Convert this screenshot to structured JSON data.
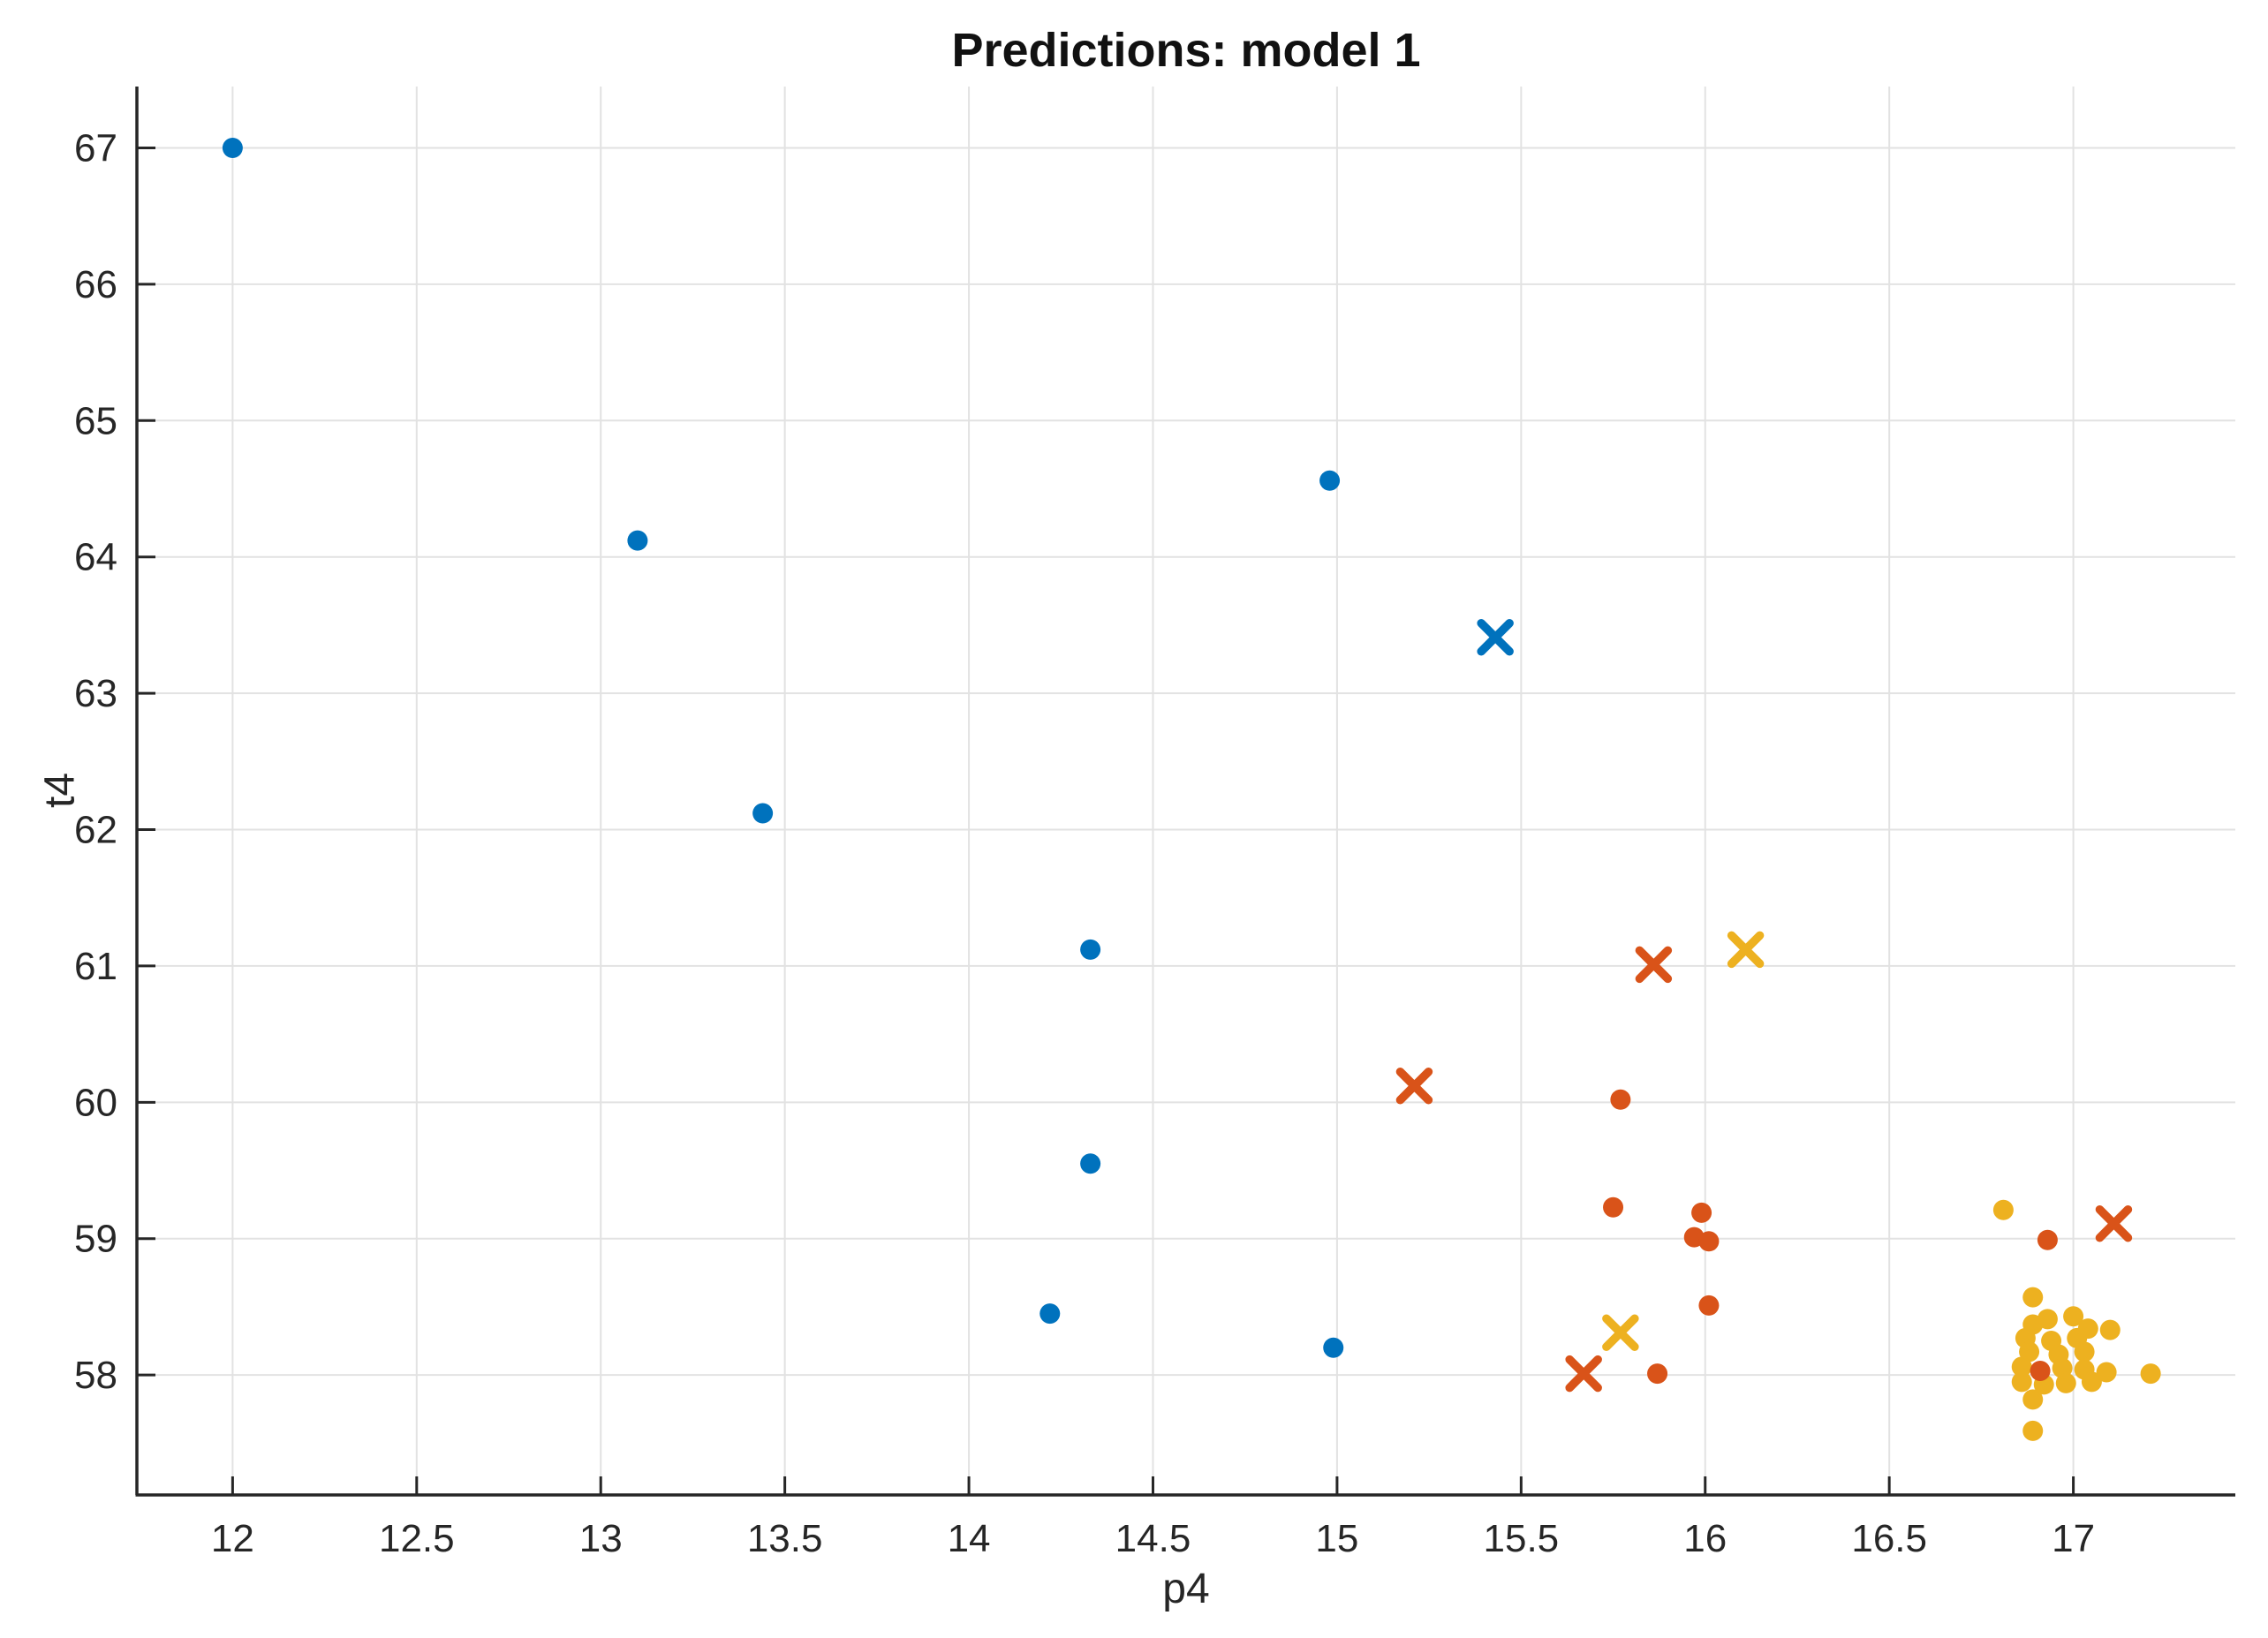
{
  "figure": {
    "background": "#ffffff"
  },
  "chart_data": {
    "type": "scatter",
    "title": "Predictions: model 1",
    "xlabel": "p4",
    "ylabel": "t4",
    "xlim": [
      11.74,
      17.44
    ],
    "ylim": [
      57.12,
      67.45
    ],
    "grid": true,
    "legend_visible": false,
    "x_ticks": [
      12,
      12.5,
      13,
      13.5,
      14,
      14.5,
      15,
      15.5,
      16,
      16.5,
      17
    ],
    "x_tick_labels": [
      "12",
      "12.5",
      "13",
      "13.5",
      "14",
      "14.5",
      "15",
      "15.5",
      "16",
      "16.5",
      "17"
    ],
    "y_ticks": [
      58,
      59,
      60,
      61,
      62,
      63,
      64,
      65,
      66,
      67
    ],
    "y_tick_labels": [
      "58",
      "59",
      "60",
      "61",
      "62",
      "63",
      "64",
      "65",
      "66",
      "67"
    ],
    "colors": {
      "blue": "#0072BD",
      "orange": "#D95319",
      "yellow": "#EDB120"
    },
    "series": [
      {
        "name": "yellow-circles",
        "marker": "circle",
        "color": "#EDB120",
        "points": [
          [
            16.81,
            59.21
          ],
          [
            16.89,
            58.57
          ],
          [
            16.89,
            58.37
          ],
          [
            16.93,
            58.41
          ],
          [
            17.0,
            58.43
          ],
          [
            17.04,
            58.34
          ],
          [
            16.87,
            58.27
          ],
          [
            16.94,
            58.25
          ],
          [
            17.01,
            58.27
          ],
          [
            16.88,
            58.17
          ],
          [
            16.96,
            58.15
          ],
          [
            17.03,
            58.17
          ],
          [
            16.86,
            58.06
          ],
          [
            16.97,
            58.05
          ],
          [
            17.03,
            58.04
          ],
          [
            16.86,
            57.95
          ],
          [
            16.92,
            57.93
          ],
          [
            16.98,
            57.94
          ],
          [
            17.05,
            57.95
          ],
          [
            16.89,
            57.82
          ],
          [
            17.1,
            58.33
          ],
          [
            17.09,
            58.02
          ],
          [
            17.21,
            58.01
          ],
          [
            16.89,
            57.59
          ]
        ]
      },
      {
        "name": "yellow-crosses",
        "marker": "x",
        "color": "#EDB120",
        "points": [
          [
            16.11,
            61.12
          ],
          [
            15.77,
            58.31
          ]
        ]
      },
      {
        "name": "orange-circles",
        "marker": "circle",
        "color": "#D95319",
        "points": [
          [
            15.75,
            59.23
          ],
          [
            15.77,
            60.02
          ],
          [
            15.87,
            58.01
          ],
          [
            15.97,
            59.01
          ],
          [
            15.99,
            59.19
          ],
          [
            16.01,
            58.98
          ],
          [
            16.01,
            58.51
          ],
          [
            16.91,
            58.03
          ],
          [
            16.93,
            58.99
          ]
        ]
      },
      {
        "name": "orange-crosses",
        "marker": "x",
        "color": "#D95319",
        "points": [
          [
            15.21,
            60.12
          ],
          [
            15.67,
            58.01
          ],
          [
            15.86,
            61.01
          ],
          [
            17.11,
            59.11
          ]
        ]
      },
      {
        "name": "blue-circles",
        "marker": "circle",
        "color": "#0072BD",
        "points": [
          [
            12.0,
            67.0
          ],
          [
            13.1,
            64.12
          ],
          [
            13.44,
            62.12
          ],
          [
            14.22,
            58.45
          ],
          [
            14.33,
            61.12
          ],
          [
            14.33,
            59.55
          ],
          [
            14.98,
            64.56
          ],
          [
            14.99,
            58.2
          ]
        ]
      },
      {
        "name": "blue-crosses",
        "marker": "x",
        "color": "#0072BD",
        "points": [
          [
            15.43,
            63.41
          ]
        ]
      }
    ]
  }
}
